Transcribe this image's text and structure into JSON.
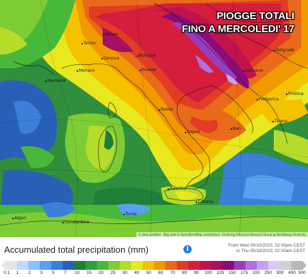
{
  "overlay": {
    "line1": "PIOGGE TOTALI",
    "line2": "FINO A MERCOLEDI' 17"
  },
  "cities": [
    {
      "name": "Ljubljana"
    },
    {
      "name": "Zagreb"
    },
    {
      "name": "Belgrade"
    },
    {
      "name": "Torino"
    },
    {
      "name": "Milano"
    },
    {
      "name": "Genova"
    },
    {
      "name": "Bologna"
    },
    {
      "name": "Monaco"
    },
    {
      "name": "Firenze"
    },
    {
      "name": "Marseille"
    },
    {
      "name": "Sarajevo"
    },
    {
      "name": "Podgorica"
    },
    {
      "name": "Roma"
    },
    {
      "name": "Bari"
    },
    {
      "name": "Napoli"
    },
    {
      "name": "Tirana"
    },
    {
      "name": "Pristina"
    },
    {
      "name": "Palermo"
    },
    {
      "name": "Catania"
    },
    {
      "name": "Algeri"
    },
    {
      "name": "Constantine"
    },
    {
      "name": "Tunisi"
    }
  ],
  "attribution": "© atmo.weather · Map data © OpenStreetMap contributors, rendering GIScience Research Group @ Heidelberg University",
  "legend": {
    "title": "Accumulated total precipitation (mm)",
    "info_icon": "info-icon",
    "date_from": "From Wed 05/10/2023, 02:00pm CEST",
    "date_to": "to Thu 05/18/2023, 02:00am CEST",
    "ticks": [
      "0.1",
      "1",
      "2",
      "3",
      "5",
      "7",
      "10",
      "15",
      "20",
      "25",
      "30",
      "40",
      "50",
      "60",
      "70",
      "80",
      "90",
      "100",
      "125",
      "150",
      "175",
      "200",
      "250",
      "300",
      "400",
      "500"
    ],
    "colors": [
      "#e6e6e6",
      "#bfd9ff",
      "#8cc0ff",
      "#5aa0f0",
      "#3b7fd9",
      "#2a5fb8",
      "#1e7f3a",
      "#2e9e3e",
      "#48b83a",
      "#7dcc33",
      "#b5dc2a",
      "#e8e81e",
      "#f5c200",
      "#f09a00",
      "#e86a1a",
      "#e23c24",
      "#d41e3c",
      "#c0134e",
      "#a61060",
      "#8c0a7a",
      "#9a3cc0",
      "#b070e0",
      "#c8a0f0",
      "#dcc8f8",
      "#d0d0d0",
      "#b8b8b8"
    ]
  }
}
